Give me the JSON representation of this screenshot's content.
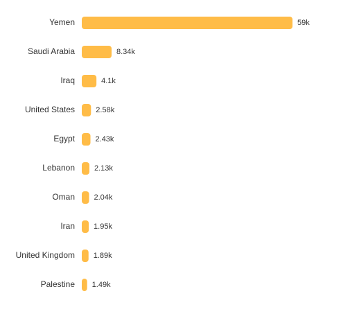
{
  "chart_data": {
    "type": "bar",
    "orientation": "horizontal",
    "categories": [
      "Yemen",
      "Saudi Arabia",
      "Iraq",
      "United States",
      "Egypt",
      "Lebanon",
      "Oman",
      "Iran",
      "United Kingdom",
      "Palestine"
    ],
    "values": [
      59000,
      8340,
      4100,
      2580,
      2430,
      2130,
      2040,
      1950,
      1890,
      1490
    ],
    "value_labels": [
      "59k",
      "8.34k",
      "4.1k",
      "2.58k",
      "2.43k",
      "2.13k",
      "2.04k",
      "1.95k",
      "1.89k",
      "1.49k"
    ],
    "color": "#ffbc47"
  }
}
